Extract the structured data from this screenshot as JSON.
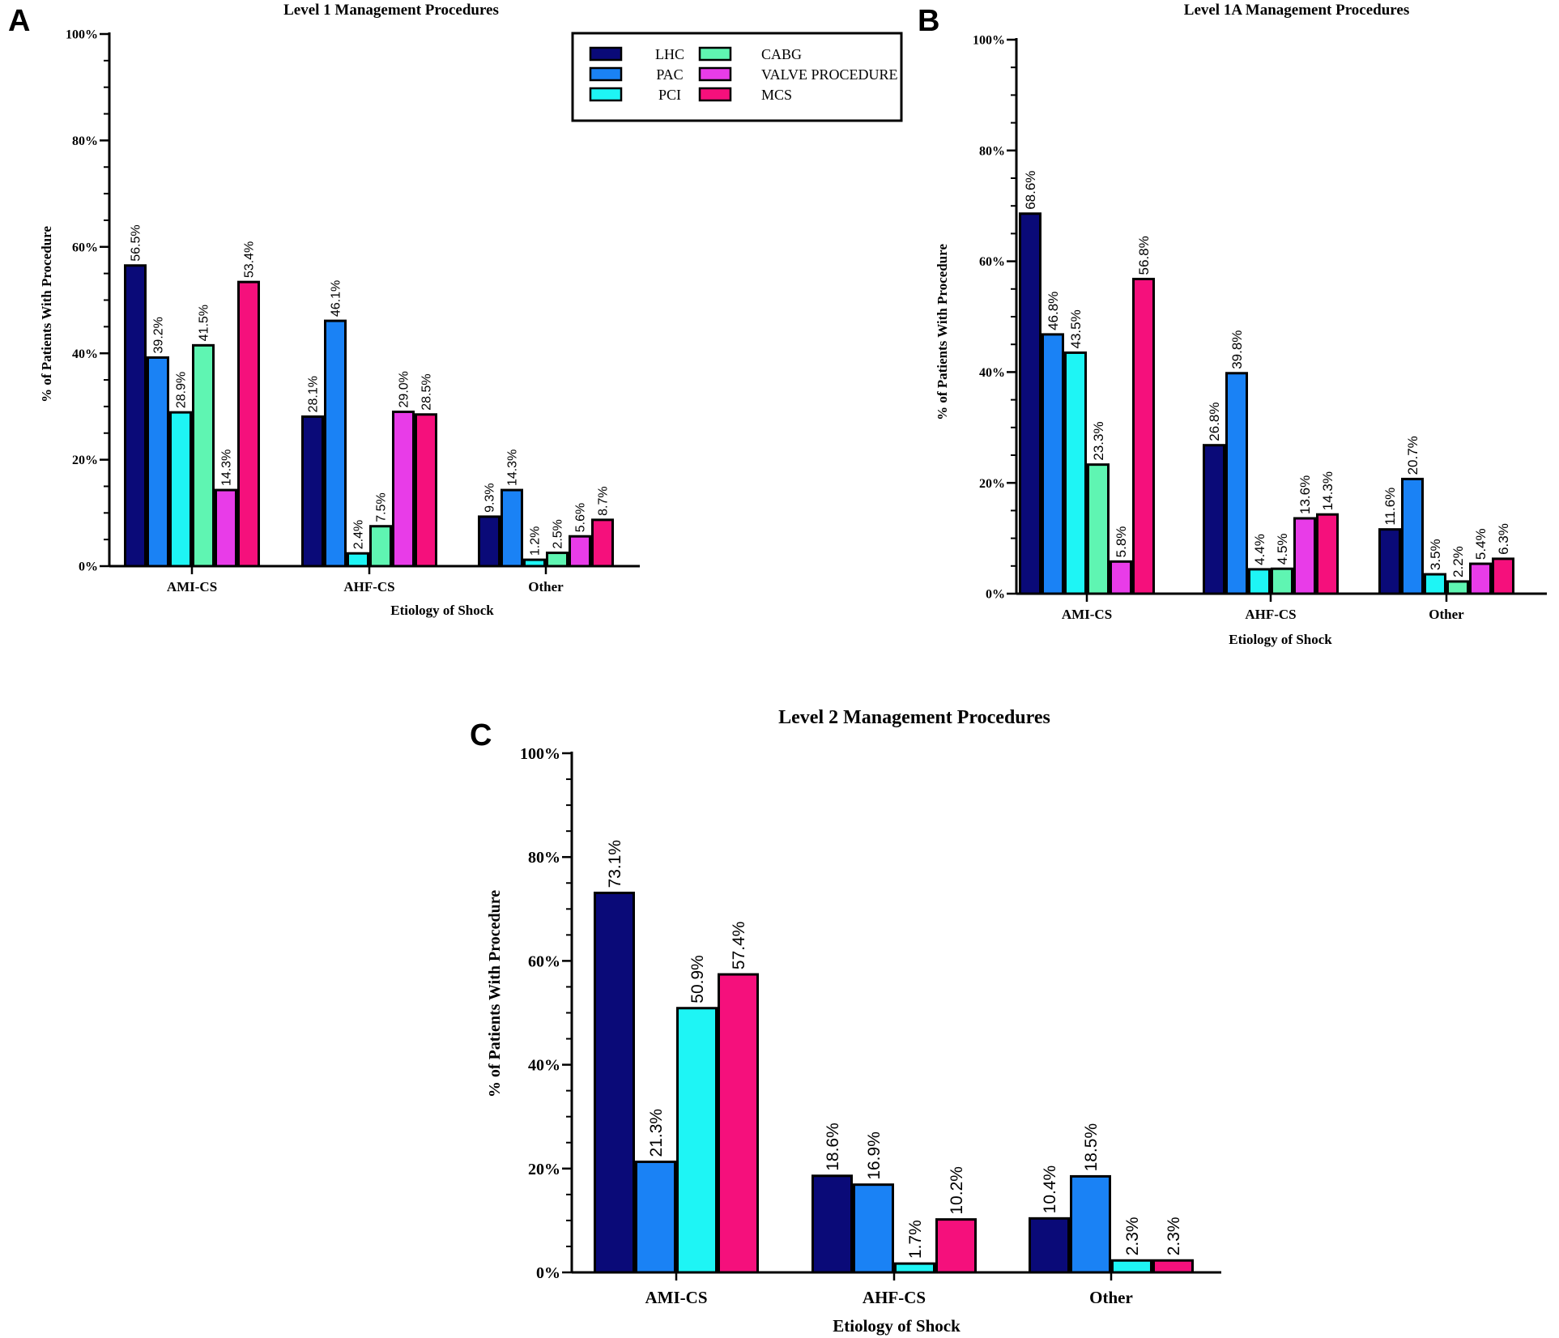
{
  "colors": {
    "LHC": "#0a0a78",
    "PAC": "#1a82f5",
    "PCI": "#1ef5f5",
    "CABG": "#5ff5b2",
    "VALVE PROCEDURE": "#e83ce8",
    "MCS": "#f5107c"
  },
  "legend": {
    "items": [
      "LHC",
      "PAC",
      "PCI",
      "CABG",
      "VALVE PROCEDURE",
      "MCS"
    ]
  },
  "chart_data": [
    {
      "panel": "A",
      "type": "bar",
      "title": "Level 1 Management Procedures",
      "xlabel": "Etiology of Shock",
      "ylabel": "% of Patients With Procedure",
      "ylim": [
        0,
        100
      ],
      "yticks": [
        "0%",
        "20%",
        "40%",
        "60%",
        "80%",
        "100%"
      ],
      "categories": [
        "AMI-CS",
        "AHF-CS",
        "Other"
      ],
      "series": [
        {
          "name": "LHC",
          "values": [
            56.5,
            28.1,
            9.3
          ],
          "labels": [
            "56.5%",
            "28.1%",
            "9.3%"
          ]
        },
        {
          "name": "PAC",
          "values": [
            39.2,
            46.1,
            14.3
          ],
          "labels": [
            "39.2%",
            "46.1%",
            "14.3%"
          ]
        },
        {
          "name": "PCI",
          "values": [
            28.9,
            2.4,
            1.2
          ],
          "labels": [
            "28.9%",
            "2.4%",
            "1.2%"
          ]
        },
        {
          "name": "CABG",
          "values": [
            41.5,
            7.5,
            2.5
          ],
          "labels": [
            "41.5%",
            "7.5%",
            "2.5%"
          ]
        },
        {
          "name": "VALVE PROCEDURE",
          "values": [
            14.3,
            29.0,
            5.6
          ],
          "labels": [
            "14.3%",
            "29.0%",
            "5.6%"
          ]
        },
        {
          "name": "MCS",
          "values": [
            53.4,
            28.5,
            8.7
          ],
          "labels": [
            "53.4%",
            "28.5%",
            "8.7%"
          ]
        }
      ]
    },
    {
      "panel": "B",
      "type": "bar",
      "title": "Level 1A Management Procedures",
      "xlabel": "Etiology of Shock",
      "ylabel": "% of Patients With Procedure",
      "ylim": [
        0,
        100
      ],
      "yticks": [
        "0%",
        "20%",
        "40%",
        "60%",
        "80%",
        "100%"
      ],
      "categories": [
        "AMI-CS",
        "AHF-CS",
        "Other"
      ],
      "series": [
        {
          "name": "LHC",
          "values": [
            68.6,
            26.8,
            11.6
          ],
          "labels": [
            "68.6%",
            "26.8%",
            "11.6%"
          ]
        },
        {
          "name": "PAC",
          "values": [
            46.8,
            39.8,
            20.7
          ],
          "labels": [
            "46.8%",
            "39.8%",
            "20.7%"
          ]
        },
        {
          "name": "PCI",
          "values": [
            43.5,
            4.4,
            3.5
          ],
          "labels": [
            "43.5%",
            "4.4%",
            "3.5%"
          ]
        },
        {
          "name": "CABG",
          "values": [
            23.3,
            4.5,
            2.2
          ],
          "labels": [
            "23.3%",
            "4.5%",
            "2.2%"
          ]
        },
        {
          "name": "VALVE PROCEDURE",
          "values": [
            5.8,
            13.6,
            5.4
          ],
          "labels": [
            "5.8%",
            "13.6%",
            "5.4%"
          ]
        },
        {
          "name": "MCS",
          "values": [
            56.8,
            14.3,
            6.3
          ],
          "labels": [
            "56.8%",
            "14.3%",
            "6.3%"
          ]
        }
      ]
    },
    {
      "panel": "C",
      "type": "bar",
      "title": "Level 2 Management Procedures",
      "xlabel": "Etiology of Shock",
      "ylabel": "% of Patients With Procedure",
      "ylim": [
        0,
        100
      ],
      "yticks": [
        "0%",
        "20%",
        "40%",
        "60%",
        "80%",
        "100%"
      ],
      "categories": [
        "AMI-CS",
        "AHF-CS",
        "Other"
      ],
      "series": [
        {
          "name": "LHC",
          "values": [
            73.1,
            18.6,
            10.4
          ],
          "labels": [
            "73.1%",
            "18.6%",
            "10.4%"
          ]
        },
        {
          "name": "PAC",
          "values": [
            21.3,
            16.9,
            18.5
          ],
          "labels": [
            "21.3%",
            "16.9%",
            "18.5%"
          ]
        },
        {
          "name": "PCI",
          "values": [
            50.9,
            1.7,
            2.3
          ],
          "labels": [
            "50.9%",
            "1.7%",
            "2.3%"
          ]
        },
        {
          "name": "MCS",
          "values": [
            57.4,
            10.2,
            2.3
          ],
          "labels": [
            "57.4%",
            "10.2%",
            "2.3%"
          ]
        }
      ]
    }
  ]
}
